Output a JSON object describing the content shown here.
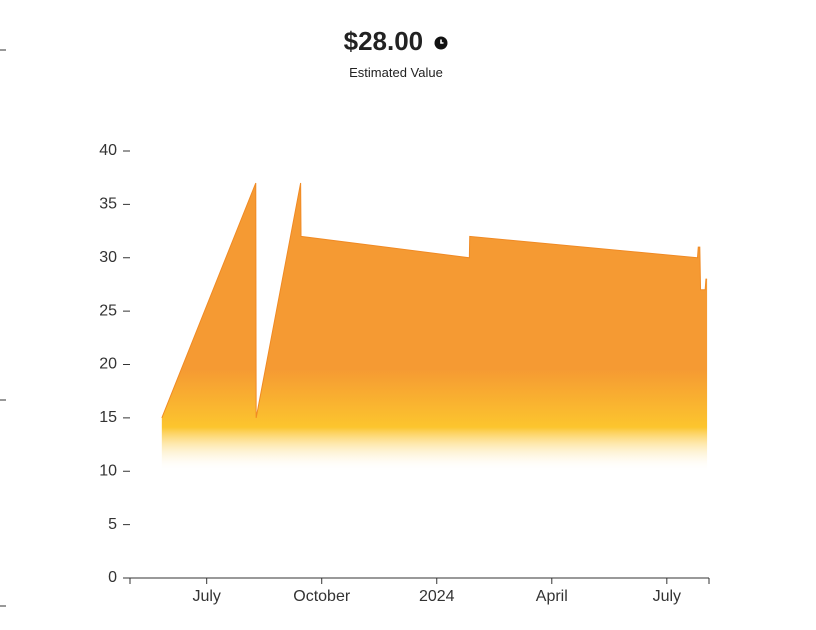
{
  "chart_data": {
    "type": "area",
    "title": "$28.00",
    "subtitle": "Estimated Value",
    "x": [
      0.83,
      3.28,
      3.29,
      4.45,
      4.46,
      8.85,
      8.86,
      14.8,
      14.82,
      14.86,
      14.88,
      15.0,
      15.02,
      15.05
    ],
    "values": [
      15,
      37,
      15,
      37,
      32,
      30,
      32,
      30,
      31,
      31,
      27,
      27,
      28,
      28
    ],
    "color": "#f08a24",
    "xlim": [
      0,
      15.1
    ],
    "xticks": [
      {
        "value": 2,
        "label": "July"
      },
      {
        "value": 5,
        "label": "October"
      },
      {
        "value": 8,
        "label": "2024"
      },
      {
        "value": 11,
        "label": "April"
      },
      {
        "value": 14,
        "label": "July"
      }
    ],
    "ylim": [
      0,
      40
    ],
    "yticks": [
      0,
      5,
      10,
      15,
      20,
      25,
      30,
      35,
      40
    ]
  }
}
